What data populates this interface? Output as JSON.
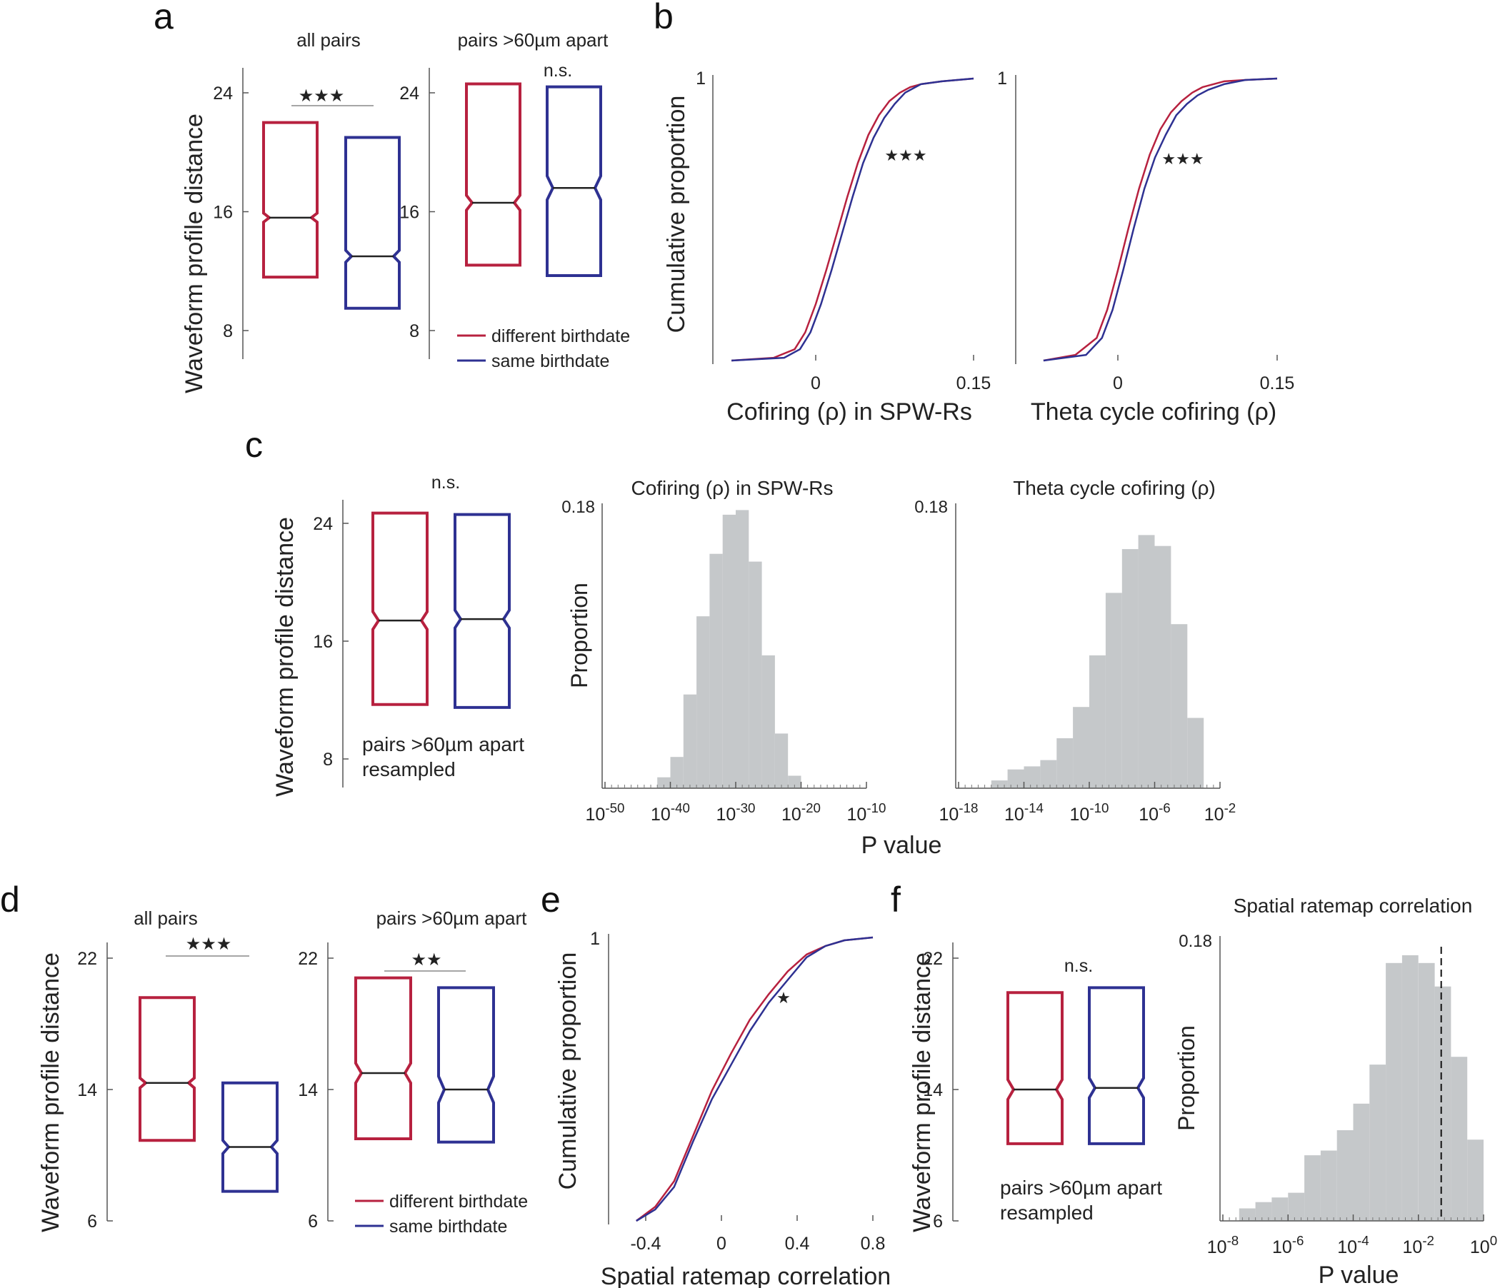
{
  "colors": {
    "different": "#b7213f",
    "same": "#2e3192",
    "axis": "#555555",
    "hist": "#c5c8ca",
    "text": "#222222"
  },
  "panel_letters": {
    "a": "a",
    "b": "b",
    "c": "c",
    "d": "d",
    "e": "e",
    "f": "f"
  },
  "legend": {
    "different": "different birthdate",
    "same": "same birthdate"
  },
  "chart_data": [
    {
      "id": "a1",
      "type": "box",
      "title": "all pairs",
      "ylabel": "Waveform profile distance",
      "yticks": [
        8,
        16,
        24
      ],
      "ylim": [
        7.2,
        25.5
      ],
      "significance": "★★★",
      "boxes": [
        {
          "group": "different birthdate",
          "q1": 11.6,
          "median": 15.6,
          "q3": 22.0,
          "notch_low": 15.3,
          "notch_high": 15.9
        },
        {
          "group": "same birthdate",
          "q1": 9.5,
          "median": 13.0,
          "q3": 21.0,
          "notch_low": 12.6,
          "notch_high": 13.4
        }
      ]
    },
    {
      "id": "a2",
      "type": "box",
      "title": "pairs >60µm apart",
      "ylabel": "",
      "yticks": [
        8,
        16,
        24
      ],
      "ylim": [
        7.2,
        25.5
      ],
      "significance": "n.s.",
      "boxes": [
        {
          "group": "different birthdate",
          "q1": 12.4,
          "median": 16.6,
          "q3": 24.6,
          "notch_low": 16.1,
          "notch_high": 17.1
        },
        {
          "group": "same birthdate",
          "q1": 11.7,
          "median": 17.6,
          "q3": 24.4,
          "notch_low": 16.8,
          "notch_high": 18.4
        }
      ]
    },
    {
      "id": "b1",
      "type": "line",
      "title": "",
      "xlabel": "Cofiring (ρ) in SPW-Rs",
      "ylabel": "Cumulative proportion",
      "xlim": [
        -0.08,
        0.15
      ],
      "ylim": [
        0,
        1
      ],
      "xtick_labels": [
        "0",
        "0.15"
      ],
      "ytick_labels": [
        "1"
      ],
      "annotation": "★★★",
      "series": [
        {
          "name": "different birthdate",
          "x": [
            -0.08,
            -0.04,
            -0.02,
            -0.01,
            0.0,
            0.01,
            0.02,
            0.03,
            0.04,
            0.05,
            0.06,
            0.07,
            0.08,
            0.09,
            0.1,
            0.12,
            0.15
          ],
          "y": [
            0.0,
            0.01,
            0.04,
            0.1,
            0.2,
            0.32,
            0.45,
            0.58,
            0.7,
            0.8,
            0.87,
            0.92,
            0.95,
            0.97,
            0.98,
            0.99,
            1.0
          ]
        },
        {
          "name": "same birthdate",
          "x": [
            -0.08,
            -0.03,
            -0.015,
            -0.005,
            0.005,
            0.015,
            0.025,
            0.035,
            0.045,
            0.055,
            0.065,
            0.075,
            0.085,
            0.1,
            0.12,
            0.15
          ],
          "y": [
            0.0,
            0.01,
            0.04,
            0.1,
            0.2,
            0.32,
            0.45,
            0.58,
            0.7,
            0.79,
            0.86,
            0.91,
            0.95,
            0.98,
            0.99,
            1.0
          ]
        }
      ]
    },
    {
      "id": "b2",
      "type": "line",
      "title": "",
      "xlabel": "Theta cycle cofiring (ρ)",
      "ylabel": "",
      "xlim": [
        -0.07,
        0.15
      ],
      "ylim": [
        0,
        1
      ],
      "xtick_labels": [
        "0",
        "0.15"
      ],
      "ytick_labels": [
        "1"
      ],
      "annotation": "★★★",
      "series": [
        {
          "name": "different birthdate",
          "x": [
            -0.07,
            -0.04,
            -0.02,
            -0.01,
            0.0,
            0.01,
            0.02,
            0.03,
            0.04,
            0.05,
            0.06,
            0.07,
            0.08,
            0.1,
            0.12,
            0.15
          ],
          "y": [
            0.0,
            0.02,
            0.08,
            0.18,
            0.32,
            0.47,
            0.61,
            0.73,
            0.82,
            0.88,
            0.92,
            0.95,
            0.97,
            0.99,
            0.995,
            1.0
          ]
        },
        {
          "name": "same birthdate",
          "x": [
            -0.07,
            -0.03,
            -0.015,
            -0.005,
            0.005,
            0.015,
            0.025,
            0.035,
            0.045,
            0.055,
            0.065,
            0.075,
            0.085,
            0.1,
            0.12,
            0.15
          ],
          "y": [
            0.0,
            0.02,
            0.08,
            0.18,
            0.32,
            0.47,
            0.61,
            0.72,
            0.8,
            0.87,
            0.91,
            0.94,
            0.96,
            0.98,
            0.995,
            1.0
          ]
        }
      ]
    },
    {
      "id": "c1",
      "type": "box",
      "title": "",
      "ylabel": "Waveform profile distance",
      "yticks": [
        8,
        16,
        24
      ],
      "ylim": [
        6.0,
        25.2
      ],
      "significance": "n.s.",
      "note": [
        "pairs >60µm apart",
        "resampled"
      ],
      "boxes": [
        {
          "group": "different birthdate",
          "q1": 11.7,
          "median": 17.4,
          "q3": 24.7,
          "notch_low": 16.8,
          "notch_high": 18.0
        },
        {
          "group": "same birthdate",
          "q1": 11.5,
          "median": 17.5,
          "q3": 24.6,
          "notch_low": 16.9,
          "notch_high": 18.1
        }
      ]
    },
    {
      "id": "c2",
      "type": "bar",
      "title": "Cofiring (ρ) in SPW-Rs",
      "xlabel": "P value",
      "ylabel": "Proportion",
      "x_log_exponents": [
        -50,
        -40,
        -30,
        -20,
        -10
      ],
      "ylim": [
        0,
        0.18
      ],
      "ytick_labels": [
        "0.18"
      ],
      "bin_edges_log10": [
        -42,
        -40,
        -38,
        -36,
        -34,
        -32,
        -30,
        -28,
        -26,
        -24,
        -22,
        -20
      ],
      "values": [
        0.007,
        0.02,
        0.06,
        0.11,
        0.15,
        0.175,
        0.178,
        0.145,
        0.085,
        0.035,
        0.008
      ]
    },
    {
      "id": "c3",
      "type": "bar",
      "title": "Theta cycle cofiring (ρ)",
      "xlabel": "P value",
      "ylabel": "",
      "x_log_exponents": [
        -18,
        -14,
        -10,
        -6,
        -2
      ],
      "ylim": [
        0,
        0.18
      ],
      "ytick_labels": [
        "0.18"
      ],
      "bin_edges_log10": [
        -16,
        -15,
        -14,
        -13,
        -12,
        -11,
        -10,
        -9,
        -8,
        -7,
        -6,
        -5,
        -4,
        -3
      ],
      "values": [
        0.005,
        0.012,
        0.014,
        0.018,
        0.032,
        0.052,
        0.085,
        0.125,
        0.153,
        0.162,
        0.155,
        0.105,
        0.045,
        0.012
      ]
    },
    {
      "id": "d1",
      "type": "box",
      "title": "all pairs",
      "ylabel": "Waveform profile distance",
      "yticks": [
        6,
        14,
        22
      ],
      "ylim": [
        6,
        22.5
      ],
      "significance": "★★★",
      "boxes": [
        {
          "group": "different birthdate",
          "q1": 10.9,
          "median": 14.4,
          "q3": 19.6,
          "notch_low": 14.1,
          "notch_high": 14.7
        },
        {
          "group": "same birthdate",
          "q1": 7.8,
          "median": 10.5,
          "q3": 14.4,
          "notch_low": 10.1,
          "notch_high": 10.9
        }
      ]
    },
    {
      "id": "d2",
      "type": "box",
      "title": "pairs >60µm apart",
      "ylabel": "",
      "yticks": [
        6,
        14,
        22
      ],
      "ylim": [
        6,
        22.5
      ],
      "significance": "★★",
      "boxes": [
        {
          "group": "different birthdate",
          "q1": 11.0,
          "median": 15.0,
          "q3": 20.8,
          "notch_low": 14.4,
          "notch_high": 15.6
        },
        {
          "group": "same birthdate",
          "q1": 10.8,
          "median": 14.0,
          "q3": 20.2,
          "notch_low": 13.2,
          "notch_high": 14.8
        }
      ]
    },
    {
      "id": "e",
      "type": "line",
      "title": "",
      "xlabel": "Spatial ratemap correlation",
      "ylabel": "Cumulative proportion",
      "xlim": [
        -0.45,
        0.8
      ],
      "ylim": [
        0,
        1
      ],
      "xtick_labels": [
        "-0.4",
        "0",
        "0.4",
        "0.8"
      ],
      "ytick_labels": [
        "1"
      ],
      "annotation": "★",
      "series": [
        {
          "name": "different birthdate",
          "x": [
            -0.45,
            -0.35,
            -0.25,
            -0.15,
            -0.05,
            0.05,
            0.15,
            0.25,
            0.35,
            0.45,
            0.55,
            0.65,
            0.8
          ],
          "y": [
            0.0,
            0.05,
            0.14,
            0.3,
            0.46,
            0.59,
            0.71,
            0.8,
            0.88,
            0.94,
            0.97,
            0.99,
            1.0
          ]
        },
        {
          "name": "same birthdate",
          "x": [
            -0.45,
            -0.35,
            -0.25,
            -0.15,
            -0.05,
            0.05,
            0.15,
            0.25,
            0.35,
            0.45,
            0.55,
            0.65,
            0.8
          ],
          "y": [
            0.0,
            0.04,
            0.12,
            0.28,
            0.43,
            0.55,
            0.67,
            0.77,
            0.85,
            0.93,
            0.97,
            0.99,
            1.0
          ]
        }
      ]
    },
    {
      "id": "f1",
      "type": "box",
      "title": "",
      "ylabel": "Waveform profile distance",
      "yticks": [
        6,
        14,
        22
      ],
      "ylim": [
        6,
        22.5
      ],
      "significance": "n.s.",
      "note": [
        "pairs >60µm apart",
        "resampled"
      ],
      "boxes": [
        {
          "group": "different birthdate",
          "q1": 10.7,
          "median": 14.0,
          "q3": 19.9,
          "notch_low": 13.4,
          "notch_high": 14.6
        },
        {
          "group": "same birthdate",
          "q1": 10.7,
          "median": 14.1,
          "q3": 20.2,
          "notch_low": 13.5,
          "notch_high": 14.7
        }
      ]
    },
    {
      "id": "f2",
      "type": "bar",
      "title": "Spatial ratemap correlation",
      "xlabel": "P value",
      "ylabel": "Proportion",
      "x_log_exponents": [
        -8,
        -6,
        -4,
        -2,
        0
      ],
      "ylim": [
        0,
        0.18
      ],
      "ytick_labels": [
        "0.18"
      ],
      "threshold_log10": -1.3,
      "bin_edges_log10": [
        -7.5,
        -7.0,
        -6.5,
        -6.0,
        -5.5,
        -5.0,
        -4.5,
        -4.0,
        -3.5,
        -3.0,
        -2.5,
        -2.0,
        -1.5,
        -1.0,
        -0.5,
        0.0
      ],
      "values": [
        0.008,
        0.012,
        0.015,
        0.018,
        0.042,
        0.045,
        0.058,
        0.075,
        0.1,
        0.165,
        0.17,
        0.165,
        0.15,
        0.105,
        0.052
      ]
    }
  ]
}
